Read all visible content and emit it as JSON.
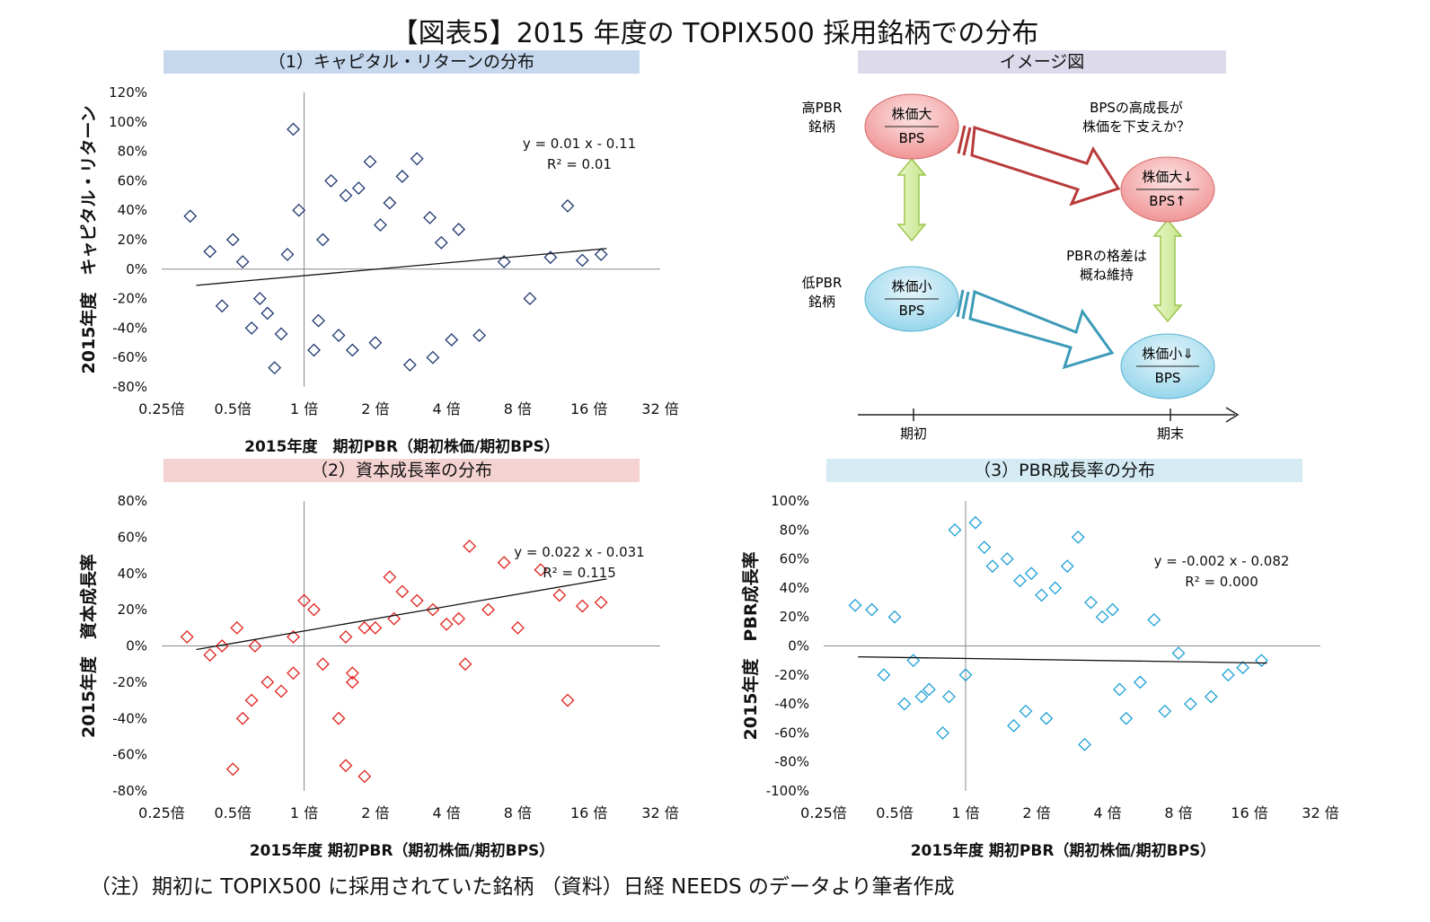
{
  "title": "【図表5】2015 年度の TOPIX500 採用銘柄での分布",
  "note": "（注）期初に TOPIX500 に採用されていた銘柄 （資料）日経 NEEDS のデータより筆者作成",
  "colors": {
    "navy": "#1f3570",
    "red": "#e0211a",
    "cyan": "#1c9fd6",
    "banner_blue": "#c5d8ee",
    "banner_purple": "#dddbeb",
    "banner_pink": "#f4d2d2",
    "banner_cyan": "#d4ebf3"
  },
  "diagram": {
    "banner": "イメージ図",
    "high_pbr": "高PBR\n銘柄",
    "low_pbr": "低PBR\n銘柄",
    "top_left_num": "株価大",
    "top_left_den": "BPS",
    "top_right_num": "株価大↓",
    "top_right_den": "BPS↑",
    "bottom_left_num": "株価小",
    "bottom_left_den": "BPS",
    "bottom_right_num": "株価小⇓",
    "bottom_right_den": "BPS",
    "note_top": "BPSの高成長が\n株価を下支えか？",
    "note_mid": "PBRの格差は\n概ね維持",
    "time_start": "期初",
    "time_end": "期末"
  },
  "chart_data": [
    {
      "type": "scatter",
      "title": "（1）キャピタル・リターンの分布",
      "ylabel": "2015年度　キャピタル・リターン",
      "xlabel": "2015年度　期初PBR（期初株価/期初BPS）",
      "x_scale": "log2",
      "xlim": [
        0.25,
        32
      ],
      "ylim": [
        -0.8,
        1.2
      ],
      "x_ticks": [
        "0.25倍",
        "0.5倍",
        "1 倍",
        "2 倍",
        "4 倍",
        "8 倍",
        "16 倍",
        "32 倍"
      ],
      "y_ticks": [
        "-80%",
        "-60%",
        "-40%",
        "-20%",
        "0%",
        "20%",
        "40%",
        "60%",
        "80%",
        "100%",
        "120%"
      ],
      "equation": "y = 0.01 x - 0.11",
      "r2": "R² = 0.01",
      "trend": {
        "x": [
          0.35,
          19
        ],
        "y": [
          -0.11,
          0.14
        ]
      },
      "series": [
        {
          "marker": "diamond",
          "color": "#1f3570",
          "x": [
            0.9,
            0.33,
            0.4,
            0.5,
            0.45,
            0.6,
            0.7,
            0.8,
            0.85,
            0.95,
            1.1,
            1.2,
            1.3,
            1.5,
            1.7,
            1.9,
            2.1,
            2.3,
            2.6,
            3.0,
            3.4,
            3.8,
            4.5,
            5.5,
            7.0,
            9.0,
            11.0,
            13.0,
            15.0,
            18.0,
            3.5,
            1.6,
            2.0,
            1.4,
            0.75,
            0.65,
            1.15,
            2.8,
            0.55,
            4.2
          ],
          "y": [
            0.95,
            0.36,
            0.12,
            0.2,
            -0.25,
            -0.4,
            -0.3,
            -0.44,
            0.1,
            0.4,
            -0.55,
            0.2,
            0.6,
            0.5,
            0.55,
            0.73,
            0.3,
            0.45,
            0.63,
            0.75,
            0.35,
            0.18,
            0.27,
            -0.45,
            0.05,
            -0.2,
            0.08,
            0.43,
            0.06,
            0.1,
            -0.6,
            -0.55,
            -0.5,
            -0.45,
            -0.67,
            -0.2,
            -0.35,
            -0.65,
            0.05,
            -0.48
          ]
        }
      ]
    },
    {
      "type": "scatter",
      "title": "（2）資本成長率の分布",
      "ylabel": "2015年度　資本成長率",
      "xlabel": "2015年度 期初PBR（期初株価/期初BPS）",
      "x_scale": "log2",
      "xlim": [
        0.25,
        32
      ],
      "ylim": [
        -0.8,
        0.8
      ],
      "x_ticks": [
        "0.25倍",
        "0.5倍",
        "1 倍",
        "2 倍",
        "4 倍",
        "8 倍",
        "16 倍",
        "32 倍"
      ],
      "y_ticks": [
        "-80%",
        "-60%",
        "-40%",
        "-20%",
        "0%",
        "20%",
        "40%",
        "60%",
        "80%"
      ],
      "equation": "y = 0.022 x - 0.031",
      "r2": "R² = 0.115",
      "trend": {
        "x": [
          0.35,
          19
        ],
        "y": [
          -0.02,
          0.37
        ]
      },
      "series": [
        {
          "marker": "diamond",
          "color": "#e0211a",
          "x": [
            0.32,
            0.4,
            0.45,
            0.5,
            0.55,
            0.6,
            0.7,
            0.8,
            0.9,
            1.0,
            1.1,
            1.2,
            1.4,
            1.5,
            1.6,
            1.8,
            2.0,
            2.3,
            2.6,
            3.0,
            3.5,
            4.0,
            4.5,
            5.0,
            6.0,
            7.0,
            8.0,
            10.0,
            12.0,
            13.0,
            15.0,
            18.0,
            0.52,
            0.62,
            1.5,
            1.8,
            1.6,
            4.8,
            2.4,
            0.9
          ],
          "y": [
            0.05,
            -0.05,
            0.0,
            -0.68,
            -0.4,
            -0.3,
            -0.2,
            -0.25,
            0.05,
            0.25,
            0.2,
            -0.1,
            -0.4,
            -0.66,
            -0.15,
            -0.72,
            0.1,
            0.38,
            0.3,
            0.25,
            0.2,
            0.12,
            0.15,
            0.55,
            0.2,
            0.46,
            0.1,
            0.42,
            0.28,
            -0.3,
            0.22,
            0.24,
            0.1,
            0.0,
            0.05,
            0.1,
            -0.2,
            -0.1,
            0.15,
            -0.15
          ]
        }
      ]
    },
    {
      "type": "scatter",
      "title": "（3）PBR成長率の分布",
      "ylabel": "2015年度　PBR成長率",
      "xlabel": "2015年度 期初PBR（期初株価/期初BPS）",
      "x_scale": "log2",
      "xlim": [
        0.25,
        32
      ],
      "ylim": [
        -1.0,
        1.0
      ],
      "x_ticks": [
        "0.25倍",
        "0.5倍",
        "1 倍",
        "2 倍",
        "4 倍",
        "8 倍",
        "16 倍",
        "32 倍"
      ],
      "y_ticks": [
        "-100%",
        "-80%",
        "-60%",
        "-40%",
        "-20%",
        "0%",
        "20%",
        "40%",
        "60%",
        "80%",
        "100%"
      ],
      "equation": "y = -0.002 x - 0.082",
      "r2": "R² = 0.000",
      "trend": {
        "x": [
          0.35,
          19
        ],
        "y": [
          -0.075,
          -0.118
        ]
      },
      "series": [
        {
          "marker": "diamond",
          "color": "#1c9fd6",
          "x": [
            0.34,
            0.4,
            0.45,
            0.5,
            0.55,
            0.6,
            0.7,
            0.8,
            0.9,
            1.0,
            1.1,
            1.2,
            1.3,
            1.5,
            1.7,
            1.9,
            2.1,
            2.4,
            2.7,
            3.0,
            3.4,
            3.8,
            4.2,
            4.8,
            5.5,
            6.3,
            7.0,
            8.0,
            9.0,
            11.0,
            13.0,
            15.0,
            18.0,
            0.85,
            1.6,
            2.2,
            3.2,
            0.65,
            1.8,
            4.5
          ],
          "y": [
            0.28,
            0.25,
            -0.2,
            0.2,
            -0.4,
            -0.1,
            -0.3,
            -0.6,
            0.8,
            -0.2,
            0.85,
            0.68,
            0.55,
            0.6,
            0.45,
            0.5,
            0.35,
            0.4,
            0.55,
            0.75,
            0.3,
            0.2,
            0.25,
            -0.5,
            -0.25,
            0.18,
            -0.45,
            -0.05,
            -0.4,
            -0.35,
            -0.2,
            -0.15,
            -0.1,
            -0.35,
            -0.55,
            -0.5,
            -0.68,
            -0.35,
            -0.45,
            -0.3
          ]
        }
      ]
    }
  ]
}
